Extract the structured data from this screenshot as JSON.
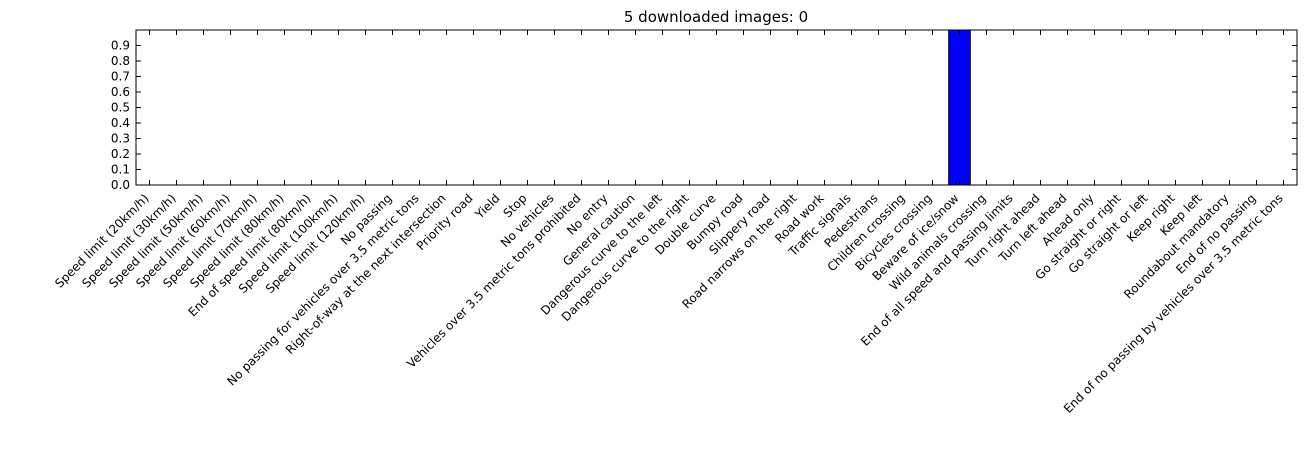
{
  "chart_data": {
    "type": "bar",
    "title": "5 downloaded images: 0",
    "xlabel": "",
    "ylabel": "",
    "ylim": [
      0,
      1.0
    ],
    "yticks": [
      0.0,
      0.1,
      0.2,
      0.3,
      0.4,
      0.5,
      0.6,
      0.7,
      0.8,
      0.9
    ],
    "ytick_labels": [
      "0.0",
      "0.1",
      "0.2",
      "0.3",
      "0.4",
      "0.5",
      "0.6",
      "0.7",
      "0.8",
      "0.9"
    ],
    "grid": false,
    "bar_color": "#0000ff",
    "categories": [
      "Speed limit (20km/h)",
      "Speed limit (30km/h)",
      "Speed limit (50km/h)",
      "Speed limit (60km/h)",
      "Speed limit (70km/h)",
      "Speed limit (80km/h)",
      "End of speed limit (80km/h)",
      "Speed limit (100km/h)",
      "Speed limit (120km/h)",
      "No passing",
      "No passing for vehicles over 3.5 metric tons",
      "Right-of-way at the next intersection",
      "Priority road",
      "Yield",
      "Stop",
      "No vehicles",
      "Vehicles over 3.5 metric tons prohibited",
      "No entry",
      "General caution",
      "Dangerous curve to the left",
      "Dangerous curve to the right",
      "Double curve",
      "Bumpy road",
      "Slippery road",
      "Road narrows on the right",
      "Road work",
      "Traffic signals",
      "Pedestrians",
      "Children crossing",
      "Bicycles crossing",
      "Beware of ice/snow",
      "Wild animals crossing",
      "End of all speed and passing limits",
      "Turn right ahead",
      "Turn left ahead",
      "Ahead only",
      "Go straight or right",
      "Go straight or left",
      "Keep right",
      "Keep left",
      "Roundabout mandatory",
      "End of no passing",
      "End of no passing by vehicles over 3.5 metric tons"
    ],
    "values": [
      0,
      0,
      0,
      0,
      0,
      0,
      0,
      0,
      0,
      0,
      0,
      0,
      0,
      0,
      0,
      0,
      0,
      0,
      0,
      0,
      0,
      0,
      0,
      0,
      0,
      0,
      0,
      0,
      0,
      0,
      1.0,
      0,
      0,
      0,
      0,
      0,
      0,
      0,
      0,
      0,
      0,
      0,
      0
    ]
  }
}
